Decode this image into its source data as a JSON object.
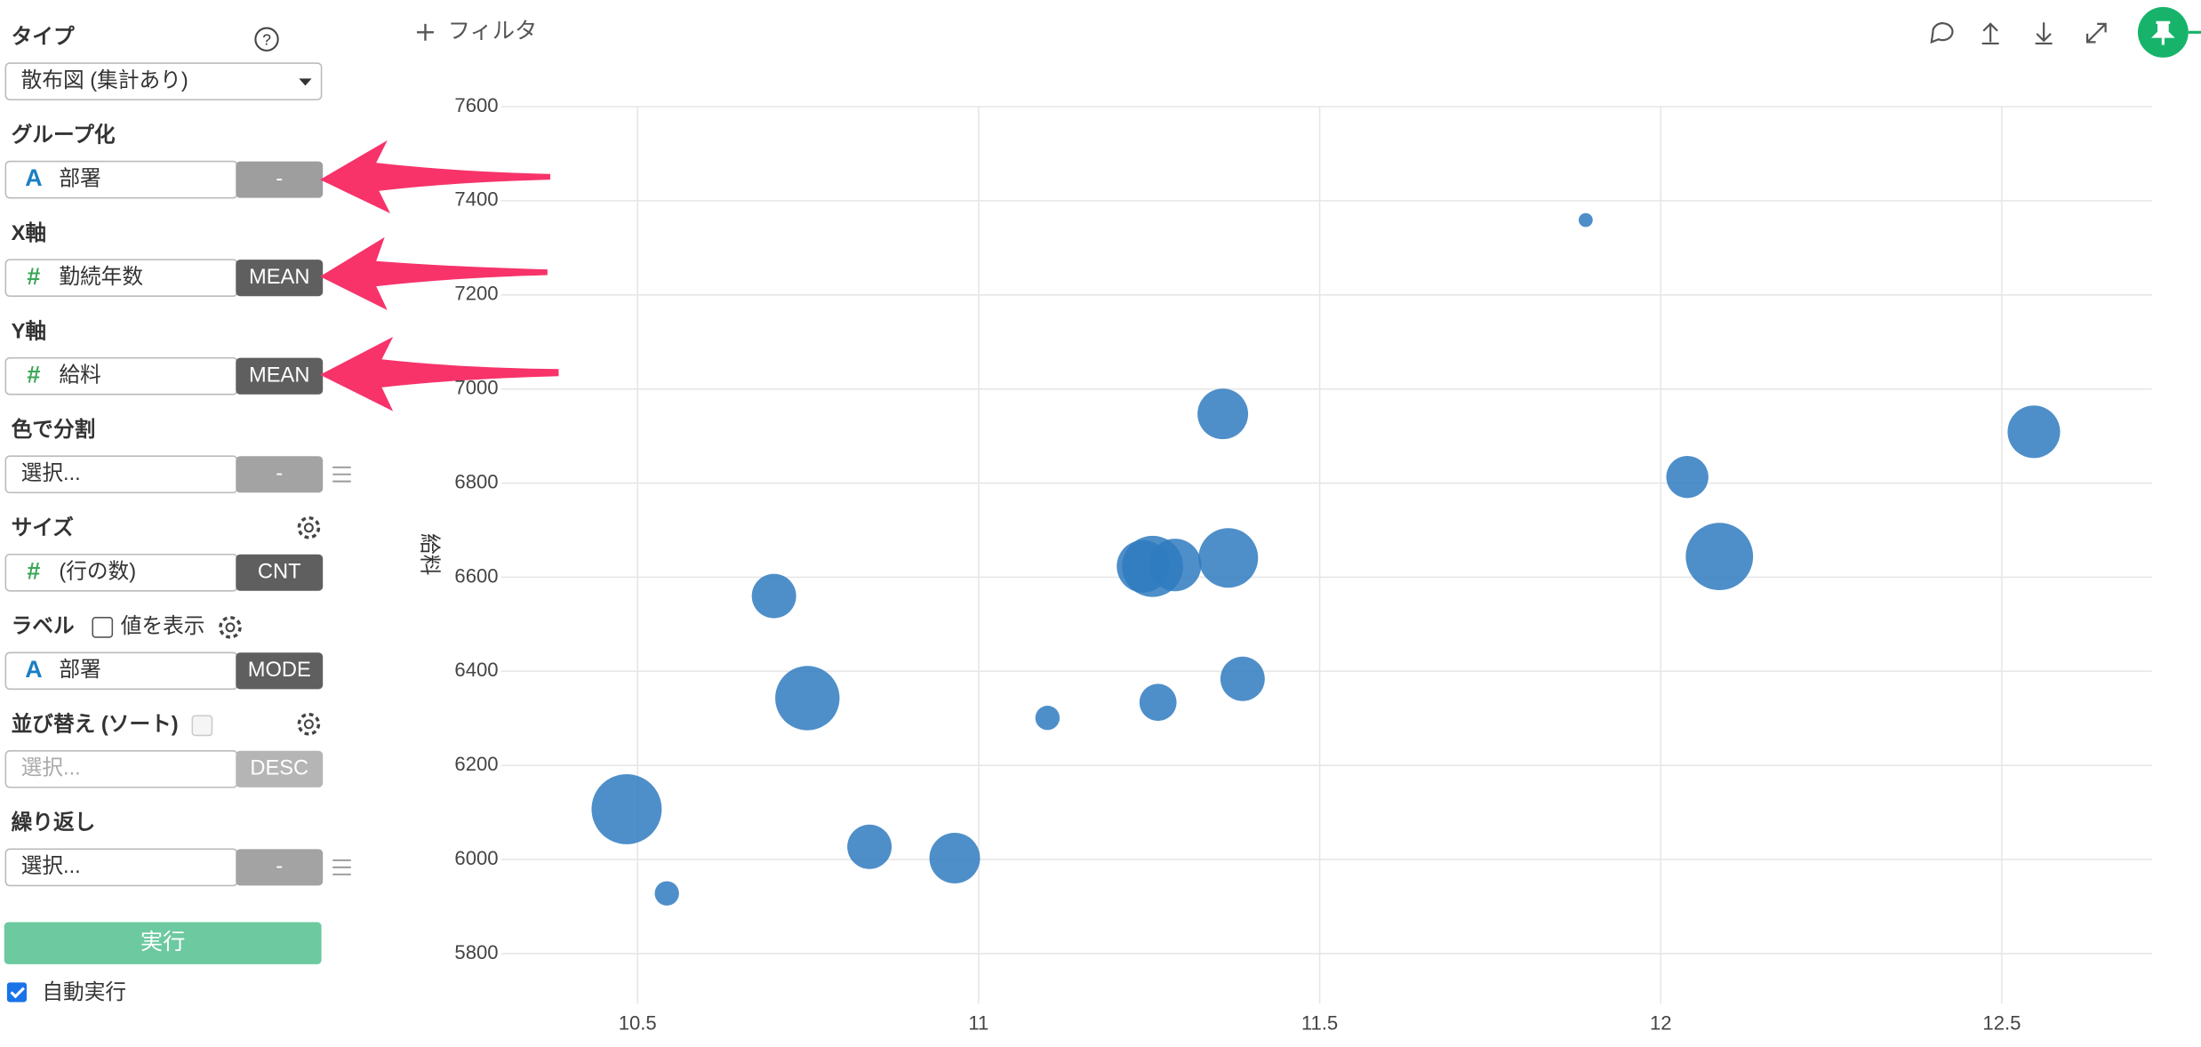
{
  "sidebar": {
    "type": {
      "title": "タイプ",
      "help": "?",
      "value": "散布図 (集計あり)"
    },
    "sections": [
      {
        "title": "グループ化",
        "icon": "A",
        "field": "部署",
        "agg": "-"
      },
      {
        "title": "X軸",
        "icon": "#",
        "field": "勤続年数",
        "agg": "MEAN"
      },
      {
        "title": "Y軸",
        "icon": "#",
        "field": "給料",
        "agg": "MEAN"
      },
      {
        "title": "色で分割",
        "field": "選択...",
        "agg": "-"
      },
      {
        "title": "サイズ",
        "icon": "#",
        "field": "(行の数)",
        "agg": "CNT"
      },
      {
        "title": "ラベル",
        "checkbox": "値を表示",
        "icon": "A",
        "field": "部署",
        "agg": "MODE"
      },
      {
        "title": "並び替え (ソート)",
        "field": "選択...",
        "agg": "DESC"
      },
      {
        "title": "繰り返し",
        "field": "選択...",
        "agg": "-"
      }
    ],
    "run": "実行",
    "auto_run": "自動実行"
  },
  "toolbar": {
    "filter": "フィルタ"
  },
  "chart_data": {
    "type": "scatter",
    "y_label": "給料",
    "x": [
      11.89,
      11.358,
      12.547,
      12.039,
      12.086,
      11.366,
      11.288,
      11.255,
      11.241,
      10.7,
      11.387,
      10.749,
      11.263,
      11.101,
      10.484,
      10.84,
      10.965,
      10.543
    ],
    "y": [
      7359,
      6947,
      6909,
      6813,
      6644,
      6641,
      6626,
      6623,
      6623,
      6560,
      6384,
      6343,
      6334,
      6301,
      6107,
      6027,
      6003,
      5928
    ],
    "sizes": [
      1,
      13,
      14,
      9,
      23,
      18,
      14,
      19,
      14,
      10,
      10,
      21,
      7,
      3,
      25,
      10,
      13,
      3
    ],
    "color": "#2f7bbf",
    "xlim": [
      10.3,
      12.72
    ],
    "ylim": [
      5700,
      7600
    ],
    "xticks": [
      10.5,
      11,
      11.5,
      12,
      12.5
    ],
    "yticks": [
      5800,
      6000,
      6200,
      6400,
      6600,
      6800,
      7000,
      7200,
      7400,
      7600
    ],
    "grid": true
  }
}
